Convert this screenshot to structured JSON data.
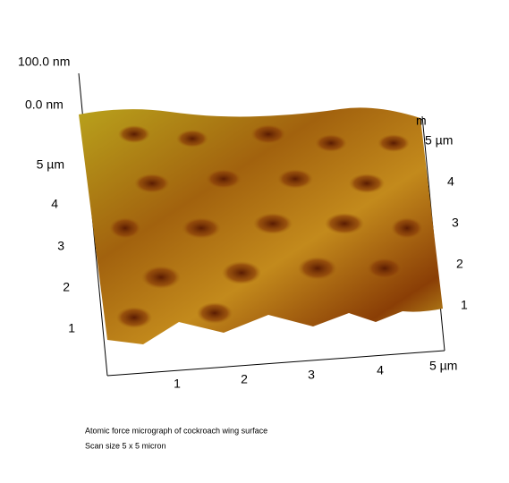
{
  "z_axis": {
    "max_label": "100.0 nm",
    "min_label": "0.0 nm"
  },
  "left_axis": {
    "ticks": [
      "1",
      "2",
      "3",
      "4",
      "5 µm"
    ]
  },
  "right_axis": {
    "ticks": [
      "1",
      "2",
      "3",
      "4",
      "5 µm"
    ],
    "hidden_label": "m"
  },
  "bottom_axis": {
    "ticks": [
      "1",
      "2",
      "3",
      "4",
      "5 µm"
    ]
  },
  "caption": {
    "line1": "Atomic force micrograph of cockroach wing surface",
    "line2": "Scan size 5 x 5 micron"
  }
}
